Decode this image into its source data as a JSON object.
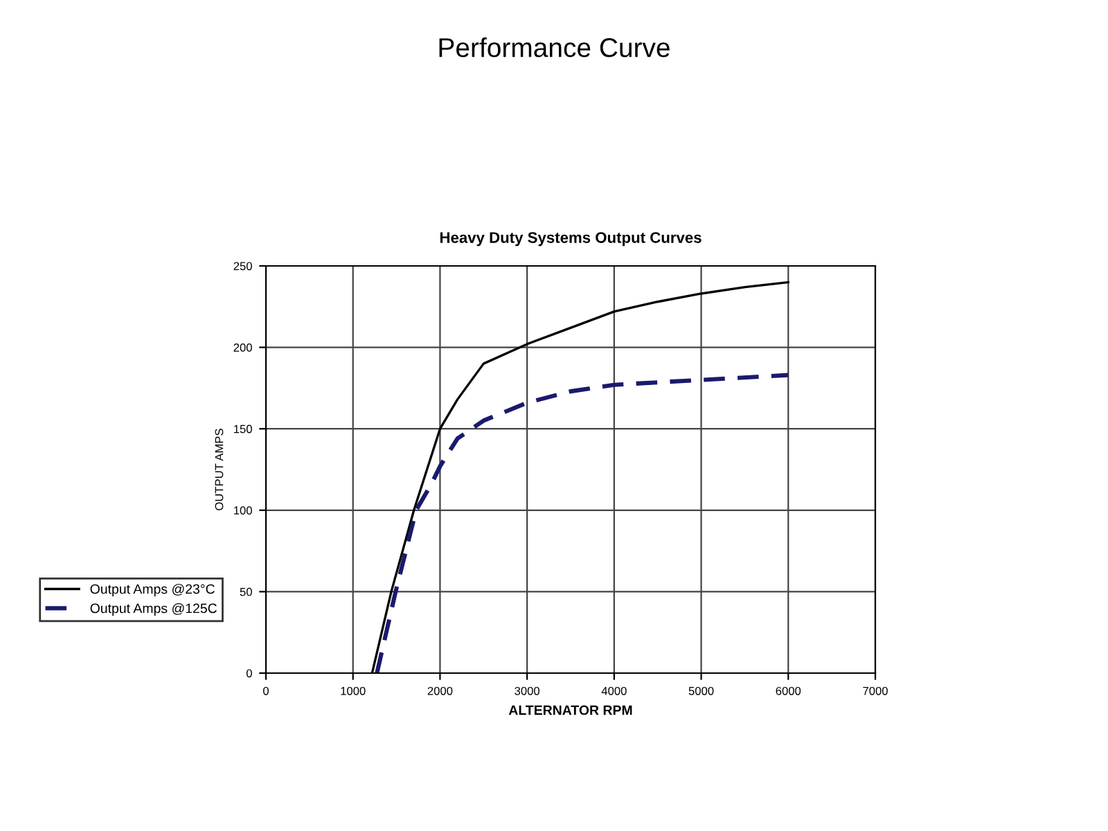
{
  "chart_data": {
    "type": "line",
    "title": "Performance Curve",
    "subtitle": "Heavy Duty Systems Output Curves",
    "xlabel": "ALTERNATOR RPM",
    "ylabel": "OUTPUT AMPS",
    "xlim": [
      0,
      7000
    ],
    "xticks": [
      0,
      1000,
      2000,
      3000,
      4000,
      5000,
      6000,
      7000
    ],
    "ylim": [
      0,
      250
    ],
    "yticks": [
      0,
      50,
      100,
      150,
      200,
      250
    ],
    "grid": true,
    "legend": "left",
    "marker": "none",
    "series": [
      {
        "name": "Output Amps @23°C",
        "color": "#000000",
        "line_style": "solid",
        "x": [
          1220,
          1440,
          1700,
          2000,
          2200,
          2500,
          3000,
          3500,
          4000,
          4500,
          5000,
          5500,
          6000
        ],
        "values": [
          0,
          50,
          100,
          150,
          168,
          190,
          202,
          212,
          222,
          228,
          233,
          237,
          240
        ]
      },
      {
        "name": "Output Amps @125C",
        "color": "#1a1a6e",
        "line_style": "dashed",
        "x": [
          1275,
          1490,
          1725,
          1900,
          2000,
          2200,
          2500,
          3000,
          3500,
          4000,
          5000,
          6000
        ],
        "values": [
          0,
          50,
          100,
          116,
          127,
          144,
          155,
          166,
          173,
          177,
          180,
          183
        ]
      }
    ]
  }
}
